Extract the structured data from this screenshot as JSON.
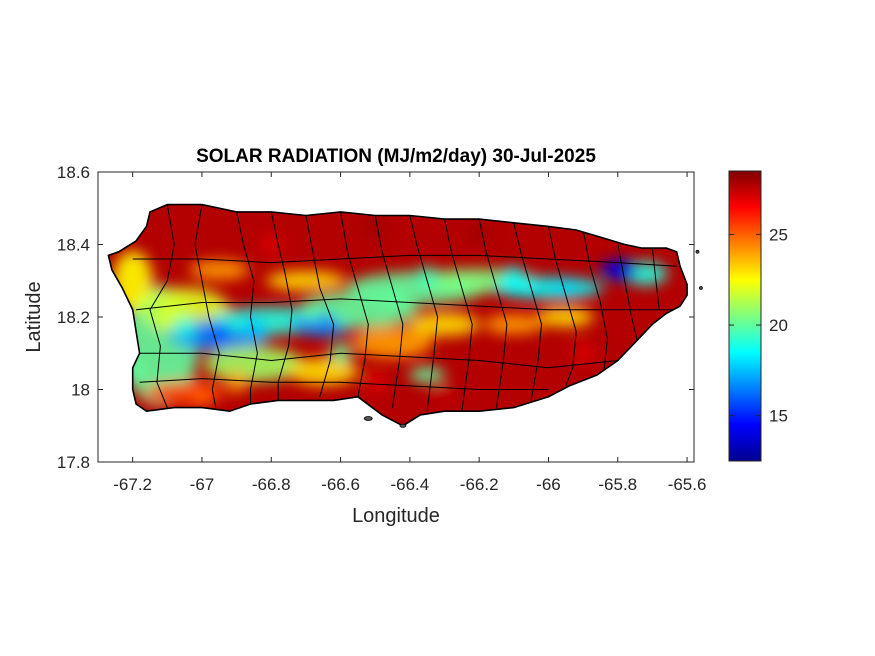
{
  "chart_data": {
    "type": "heatmap",
    "title": "SOLAR RADIATION (MJ/m2/day) 30-Jul-2025",
    "xlabel": "Longitude",
    "ylabel": "Latitude",
    "xlim": [
      -67.3,
      -65.58
    ],
    "ylim": [
      17.8,
      18.6
    ],
    "x_ticks": [
      -67.2,
      -67,
      -66.8,
      -66.6,
      -66.4,
      -66.2,
      -66,
      -65.8,
      -65.6
    ],
    "x_tick_labels": [
      "-67.2",
      "-67",
      "-66.8",
      "-66.6",
      "-66.4",
      "-66.2",
      "-66",
      "-65.8",
      "-65.6"
    ],
    "y_ticks": [
      17.8,
      18,
      18.2,
      18.4,
      18.6
    ],
    "y_tick_labels": [
      "17.8",
      "18",
      "18.2",
      "18.4",
      "18.6"
    ],
    "colorbar": {
      "colormap": "jet",
      "range": [
        12.5,
        28.5
      ],
      "ticks": [
        15,
        20,
        25
      ],
      "tick_labels": [
        "15",
        "20",
        "25"
      ]
    },
    "grid": false,
    "region": "Puerto Rico (municipality boundaries)",
    "field_samples": [
      {
        "lon": -67.15,
        "lat": 18.22,
        "value": 21
      },
      {
        "lon": -67.05,
        "lat": 18.17,
        "value": 19
      },
      {
        "lon": -66.95,
        "lat": 18.16,
        "value": 16
      },
      {
        "lon": -66.85,
        "lat": 18.17,
        "value": 17.5
      },
      {
        "lon": -66.64,
        "lat": 18.18,
        "value": 16.5
      },
      {
        "lon": -66.45,
        "lat": 18.25,
        "value": 20
      },
      {
        "lon": -66.35,
        "lat": 18.31,
        "value": 19.5
      },
      {
        "lon": -66.1,
        "lat": 18.31,
        "value": 18.5
      },
      {
        "lon": -65.95,
        "lat": 18.28,
        "value": 18
      },
      {
        "lon": -65.78,
        "lat": 18.33,
        "value": 14
      },
      {
        "lon": -67.2,
        "lat": 18.05,
        "value": 20
      },
      {
        "lon": -66.8,
        "lat": 18.4,
        "value": 27
      },
      {
        "lon": -66.5,
        "lat": 18.45,
        "value": 28
      },
      {
        "lon": -66.2,
        "lat": 18.43,
        "value": 28
      },
      {
        "lon": -65.9,
        "lat": 18.1,
        "value": 27
      },
      {
        "lon": -66.5,
        "lat": 18.02,
        "value": 27
      },
      {
        "lon": -66.3,
        "lat": 17.98,
        "value": 27.5
      },
      {
        "lon": -66.9,
        "lat": 18.02,
        "value": 24
      },
      {
        "lon": -67.0,
        "lat": 17.98,
        "value": 25
      },
      {
        "lon": -66.6,
        "lat": 18.1,
        "value": 20
      }
    ]
  }
}
